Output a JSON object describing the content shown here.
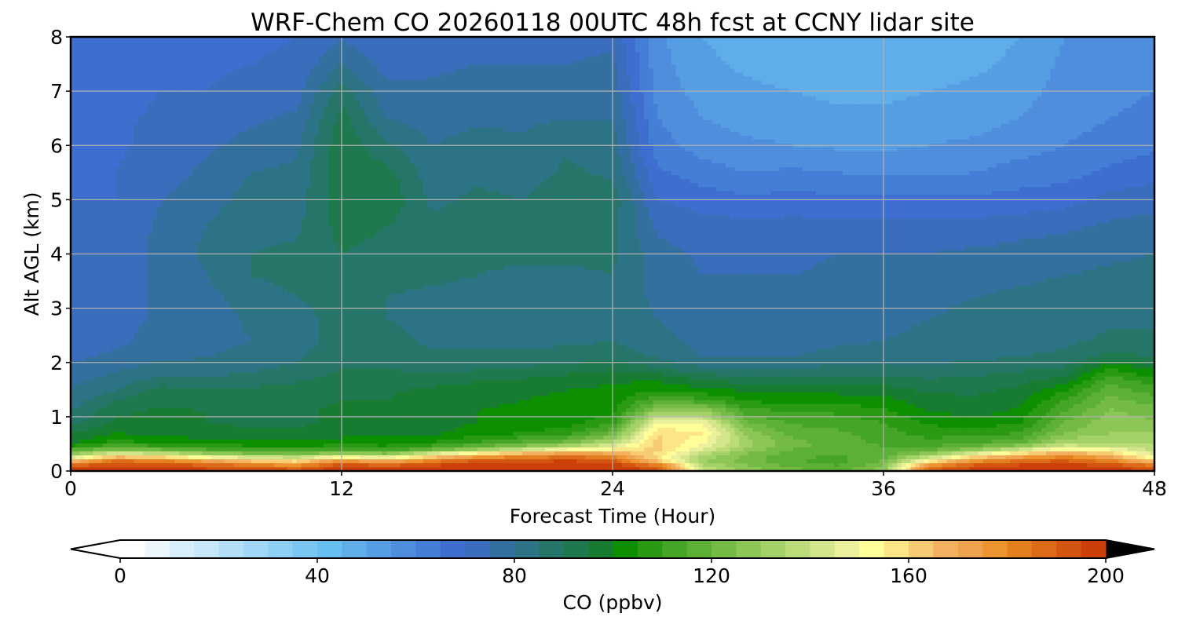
{
  "chart_data": {
    "type": "heatmap",
    "title": "WRF-Chem CO  20260118 00UTC 48h fcst at CCNY lidar site",
    "xlabel": "Forecast Time (Hour)",
    "ylabel": "Alt AGL (km)",
    "xlim": [
      0,
      48
    ],
    "ylim": [
      0,
      8
    ],
    "xticks": [
      0,
      12,
      24,
      36,
      48
    ],
    "yticks": [
      0,
      1,
      2,
      3,
      4,
      5,
      6,
      7,
      8
    ],
    "grid": true,
    "x": [
      0,
      2,
      4,
      6,
      8,
      10,
      12,
      14,
      16,
      18,
      20,
      22,
      24,
      26,
      28,
      30,
      32,
      34,
      36,
      38,
      40,
      42,
      44,
      46,
      48
    ],
    "y": [
      0,
      0.1,
      0.2,
      0.3,
      0.4,
      0.5,
      0.7,
      0.9,
      1.1,
      1.3,
      1.5,
      1.7,
      1.9,
      2.1,
      2.4,
      2.8,
      3.2,
      3.6,
      4.0,
      4.5,
      5.0,
      5.5,
      6.0,
      6.5,
      7.0,
      7.5,
      8.0
    ],
    "z_columns": [
      [
        200,
        190,
        160,
        130,
        115,
        100,
        95,
        88,
        85,
        82,
        80,
        78,
        76,
        74,
        73,
        72,
        72,
        71,
        71,
        70,
        70,
        69,
        69,
        68,
        68,
        67,
        66
      ],
      [
        200,
        195,
        185,
        150,
        125,
        108,
        100,
        96,
        94,
        90,
        85,
        82,
        79,
        76,
        74,
        73,
        72,
        72,
        71,
        71,
        70,
        70,
        69,
        69,
        68,
        68,
        67
      ],
      [
        200,
        195,
        180,
        145,
        120,
        105,
        98,
        96,
        96,
        94,
        92,
        86,
        82,
        79,
        77,
        76,
        76,
        76,
        77,
        76,
        75,
        73,
        72,
        71,
        70,
        69,
        68
      ],
      [
        198,
        190,
        170,
        135,
        115,
        103,
        97,
        95,
        95,
        93,
        90,
        86,
        82,
        80,
        78,
        77,
        78,
        80,
        81,
        80,
        78,
        76,
        74,
        72,
        70,
        69,
        68
      ],
      [
        196,
        185,
        160,
        128,
        112,
        102,
        96,
        94,
        94,
        93,
        91,
        87,
        84,
        82,
        80,
        81,
        83,
        85,
        85,
        84,
        82,
        80,
        77,
        74,
        72,
        70,
        69
      ],
      [
        195,
        180,
        155,
        125,
        110,
        102,
        96,
        94,
        94,
        94,
        92,
        89,
        86,
        84,
        83,
        84,
        85,
        86,
        86,
        84,
        83,
        81,
        79,
        76,
        73,
        71,
        70
      ],
      [
        200,
        195,
        175,
        135,
        112,
        103,
        98,
        96,
        96,
        95,
        94,
        92,
        90,
        89,
        87,
        86,
        86,
        88,
        90,
        92,
        93,
        94,
        94,
        92,
        88,
        80,
        74
      ],
      [
        198,
        190,
        165,
        130,
        110,
        103,
        98,
        97,
        96,
        95,
        94,
        92,
        90,
        89,
        87,
        85,
        85,
        86,
        88,
        90,
        94,
        92,
        86,
        80,
        76,
        73,
        71
      ],
      [
        200,
        196,
        180,
        150,
        120,
        106,
        99,
        98,
        98,
        98,
        96,
        92,
        88,
        86,
        84,
        83,
        84,
        86,
        87,
        86,
        84,
        82,
        80,
        78,
        76,
        74,
        72
      ],
      [
        200,
        198,
        190,
        165,
        130,
        112,
        102,
        100,
        100,
        99,
        98,
        94,
        89,
        86,
        84,
        83,
        83,
        85,
        86,
        87,
        86,
        84,
        82,
        79,
        77,
        75,
        73
      ],
      [
        200,
        198,
        192,
        175,
        140,
        118,
        105,
        101,
        101,
        100,
        99,
        95,
        90,
        86,
        84,
        83,
        83,
        84,
        86,
        86,
        85,
        83,
        81,
        79,
        77,
        75,
        73
      ],
      [
        200,
        199,
        195,
        180,
        150,
        124,
        108,
        103,
        102,
        101,
        100,
        97,
        92,
        87,
        84,
        83,
        83,
        84,
        86,
        88,
        87,
        86,
        84,
        80,
        77,
        75,
        73
      ],
      [
        200,
        198,
        190,
        175,
        155,
        140,
        120,
        108,
        104,
        102,
        101,
        99,
        94,
        88,
        85,
        83,
        83,
        85,
        86,
        86,
        88,
        84,
        82,
        80,
        78,
        76,
        74
      ],
      [
        196,
        185,
        160,
        158,
        162,
        162,
        160,
        150,
        130,
        115,
        104,
        99,
        90,
        84,
        82,
        80,
        79,
        78,
        77,
        74,
        70,
        66,
        62,
        60,
        58,
        57,
        56
      ],
      [
        140,
        135,
        130,
        135,
        145,
        150,
        155,
        148,
        130,
        112,
        101,
        94,
        85,
        80,
        78,
        77,
        76,
        75,
        74,
        72,
        68,
        62,
        58,
        55,
        53,
        51,
        50
      ],
      [
        128,
        125,
        122,
        124,
        128,
        132,
        128,
        120,
        112,
        104,
        99,
        92,
        85,
        80,
        78,
        77,
        76,
        75,
        74,
        72,
        66,
        60,
        56,
        53,
        51,
        49,
        48
      ],
      [
        122,
        118,
        115,
        117,
        120,
        122,
        118,
        114,
        110,
        104,
        99,
        92,
        85,
        80,
        78,
        77,
        76,
        75,
        74,
        72,
        67,
        61,
        55,
        52,
        50,
        48,
        47
      ],
      [
        118,
        115,
        113,
        115,
        117,
        118,
        116,
        113,
        109,
        103,
        98,
        92,
        86,
        82,
        79,
        77,
        76,
        76,
        75,
        72,
        66,
        60,
        54,
        51,
        49,
        47,
        46
      ],
      [
        128,
        124,
        120,
        118,
        116,
        114,
        112,
        110,
        106,
        102,
        97,
        92,
        86,
        82,
        80,
        79,
        78,
        77,
        75,
        72,
        66,
        59,
        54,
        51,
        49,
        47,
        46
      ],
      [
        192,
        178,
        150,
        130,
        118,
        112,
        108,
        104,
        100,
        97,
        94,
        90,
        86,
        83,
        81,
        80,
        79,
        77,
        75,
        72,
        66,
        59,
        55,
        52,
        50,
        48,
        47
      ],
      [
        198,
        192,
        175,
        150,
        128,
        115,
        108,
        102,
        98,
        96,
        94,
        91,
        87,
        84,
        82,
        81,
        80,
        78,
        76,
        72,
        66,
        60,
        56,
        53,
        51,
        49,
        48
      ],
      [
        199,
        196,
        185,
        165,
        140,
        120,
        110,
        104,
        101,
        98,
        96,
        93,
        89,
        85,
        83,
        82,
        81,
        79,
        77,
        73,
        67,
        62,
        58,
        55,
        53,
        51,
        50
      ],
      [
        200,
        197,
        190,
        175,
        155,
        135,
        125,
        120,
        115,
        110,
        104,
        96,
        90,
        86,
        84,
        83,
        82,
        80,
        78,
        74,
        68,
        63,
        60,
        58,
        57,
        56,
        55
      ],
      [
        200,
        195,
        180,
        165,
        150,
        135,
        130,
        128,
        126,
        122,
        118,
        112,
        105,
        92,
        86,
        84,
        83,
        81,
        79,
        76,
        72,
        66,
        62,
        60,
        58,
        57,
        56
      ],
      [
        196,
        185,
        160,
        145,
        138,
        134,
        130,
        126,
        122,
        118,
        112,
        106,
        98,
        90,
        86,
        84,
        83,
        82,
        80,
        77,
        73,
        68,
        64,
        62,
        60,
        59,
        58
      ]
    ],
    "colorbar": {
      "label": "CO  (ppbv)",
      "min": 0,
      "max": 200,
      "step": 5,
      "ticks": [
        0,
        40,
        80,
        120,
        160,
        200
      ],
      "extend": "both",
      "colors": [
        "#ffffff",
        "#ecf6fd",
        "#d9eefb",
        "#c6e6f9",
        "#b3def8",
        "#a0d6f6",
        "#8dcef4",
        "#7ac6f3",
        "#67bef1",
        "#5faeea",
        "#569ee4",
        "#4e8edd",
        "#457ed7",
        "#3d6ed0",
        "#3a6dbc",
        "#3370a0",
        "#2c7385",
        "#257669",
        "#1e794e",
        "#177c32",
        "#0c9000",
        "#2a9a14",
        "#44a526",
        "#5cb036",
        "#74bb46",
        "#8cc657",
        "#a4d168",
        "#bcdc7a",
        "#d4e68c",
        "#ecf09c",
        "#ffff99",
        "#fbe585",
        "#f7cb72",
        "#f3b15f",
        "#efa24e",
        "#ec9430",
        "#e47f20",
        "#dc6a18",
        "#d45510",
        "#cc3f08",
        "#c42000",
        "#b31000",
        "#a30000",
        "#930000",
        "#820000",
        "#6d0000",
        "#570000",
        "#3d0000",
        "#240000",
        "#120000",
        "#000000"
      ]
    }
  }
}
